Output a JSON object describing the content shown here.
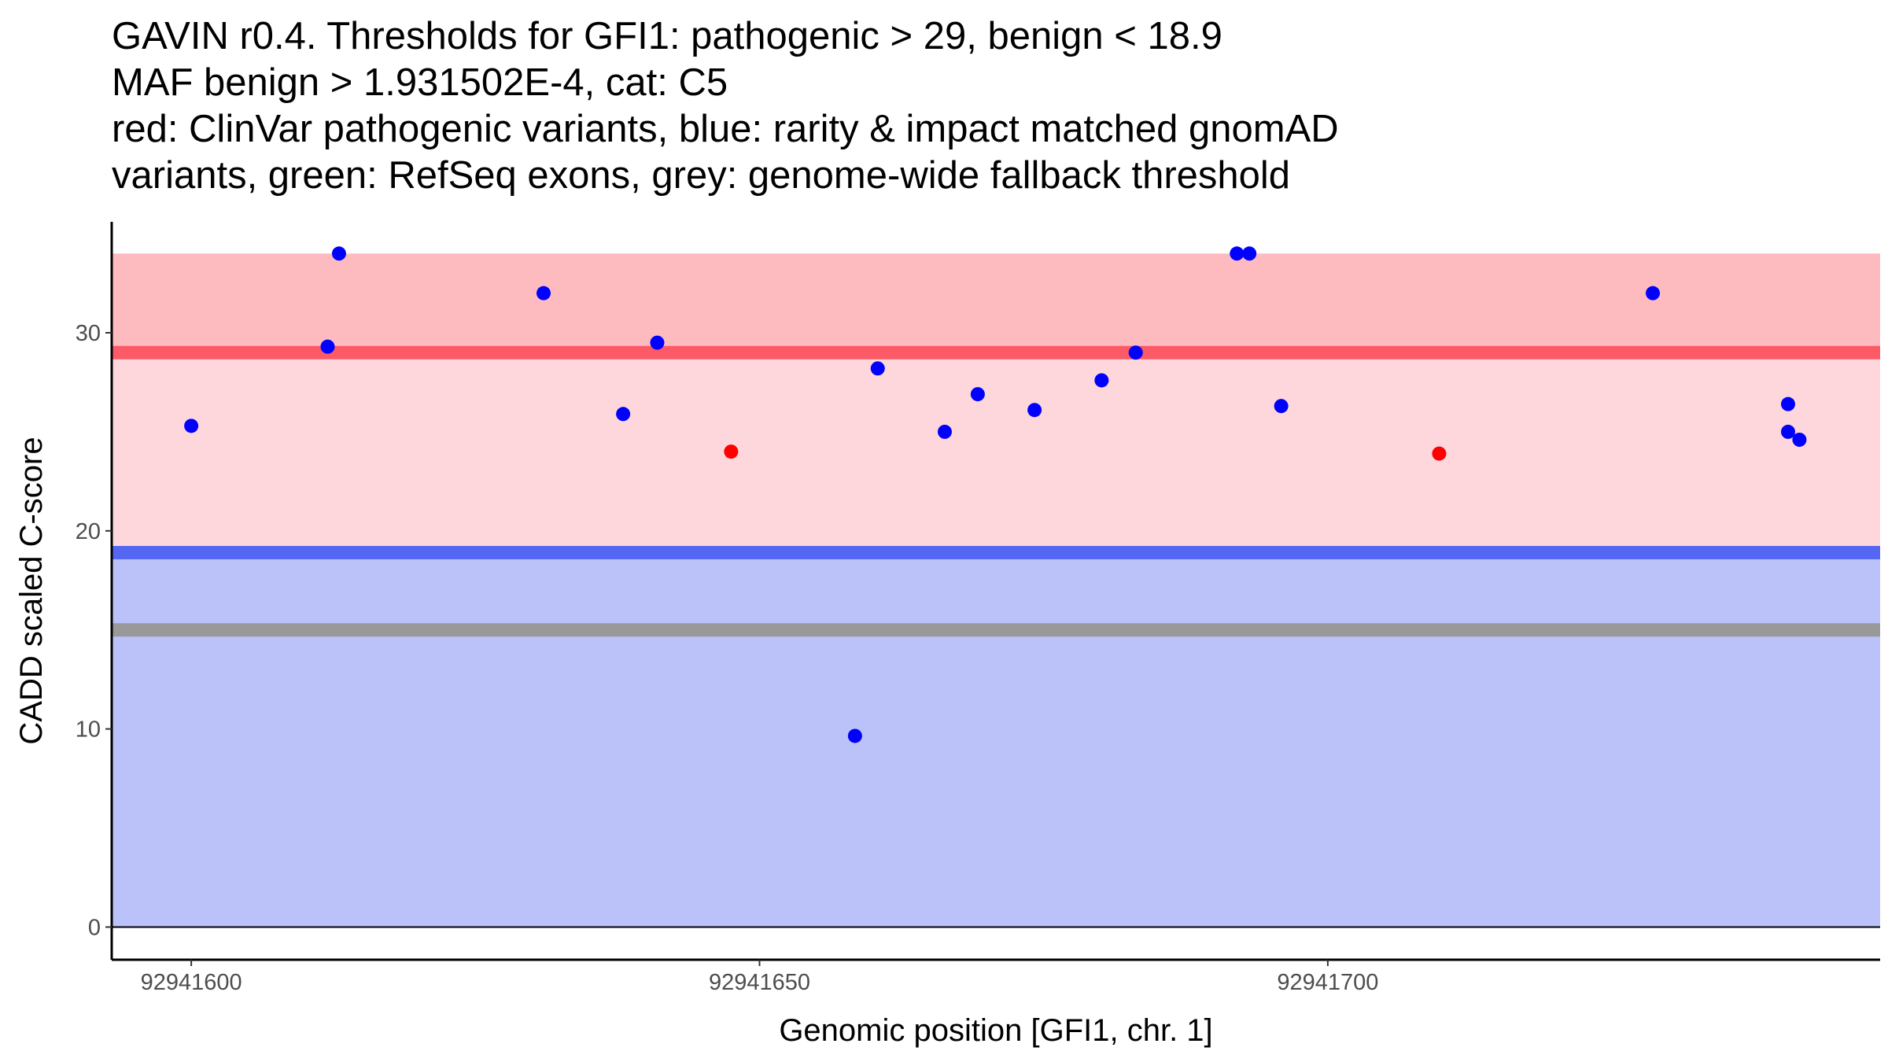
{
  "chart_data": {
    "type": "scatter",
    "title_lines": [
      "GAVIN r0.4. Thresholds for GFI1: pathogenic > 29, benign < 18.9",
      "MAF benign > 1.931502E-4, cat: C5",
      "red: ClinVar pathogenic variants, blue: rarity & impact matched gnomAD",
      "variants, green: RefSeq exons, grey: genome-wide fallback threshold"
    ],
    "xlabel": "Genomic position [GFI1, chr. 1]",
    "ylabel": "CADD scaled C-score",
    "xlim": [
      92941593,
      92941748.6
    ],
    "ylim": [
      -1.65,
      35.6
    ],
    "x_ticks": [
      92941600,
      92941650,
      92941700
    ],
    "x_tick_labels": [
      "92941600",
      "92941650",
      "92941700"
    ],
    "y_ticks": [
      0,
      10,
      20,
      30
    ],
    "y_tick_labels": [
      "0",
      "10",
      "20",
      "30"
    ],
    "grid": false,
    "bands": [
      {
        "name": "pathogenic-zone-upper",
        "y0": 29,
        "y1": 34,
        "color": "#fdbbc0"
      },
      {
        "name": "pathogenic-zone",
        "y0": 18.9,
        "y1": 29,
        "color": "#fdd7db"
      },
      {
        "name": "benign-zone",
        "y0": 0,
        "y1": 18.9,
        "color": "#bbc1f9"
      }
    ],
    "threshold_lines": [
      {
        "name": "pathogenic-threshold",
        "y": 29,
        "color": "#fb5a66"
      },
      {
        "name": "benign-threshold",
        "y": 18.9,
        "color": "#5466f2"
      },
      {
        "name": "fallback-threshold",
        "y": 15,
        "color": "#999999"
      }
    ],
    "series": [
      {
        "name": "gnomAD variants",
        "color": "#0000ff",
        "points": [
          [
            92941600,
            25.3
          ],
          [
            92941612,
            29.3
          ],
          [
            92941613,
            34.0
          ],
          [
            92941631,
            32.0
          ],
          [
            92941638,
            25.9
          ],
          [
            92941641,
            29.5
          ],
          [
            92941658.4,
            9.65
          ],
          [
            92941660.4,
            28.2
          ],
          [
            92941666.3,
            25.0
          ],
          [
            92941669.2,
            26.9
          ],
          [
            92941674.2,
            26.1
          ],
          [
            92941680.1,
            27.6
          ],
          [
            92941683.1,
            29.0
          ],
          [
            92941692,
            34.0
          ],
          [
            92941693.1,
            34.0
          ],
          [
            92941695.9,
            26.3
          ],
          [
            92941728.6,
            32.0
          ],
          [
            92941740.5,
            26.4
          ],
          [
            92941740.5,
            25.0
          ],
          [
            92941741.5,
            24.6
          ]
        ]
      },
      {
        "name": "ClinVar pathogenic variants",
        "color": "#ff0000",
        "points": [
          [
            92941647.5,
            24.0
          ],
          [
            92941709.8,
            23.9
          ]
        ]
      }
    ]
  }
}
